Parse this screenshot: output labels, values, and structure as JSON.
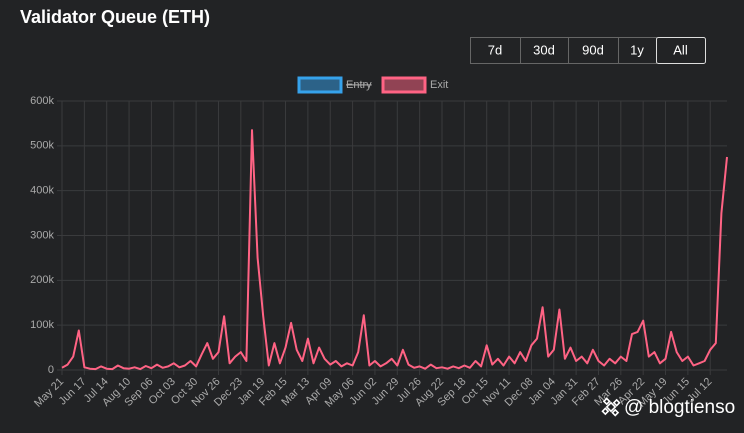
{
  "chart_data": {
    "type": "line",
    "title": "Validator Queue (ETH)",
    "buttons": [
      "7d",
      "30d",
      "90d",
      "1y",
      "All"
    ],
    "active_button": 4,
    "hidden_series": [
      {
        "name": "Entry",
        "color": "#36a2eb"
      }
    ],
    "series": [
      {
        "name": "Exit",
        "color": "#ff6384",
        "values": [
          5000,
          12000,
          30000,
          88000,
          6000,
          3000,
          2000,
          8000,
          3000,
          2000,
          10000,
          4000,
          3000,
          6000,
          2000,
          9000,
          4000,
          12000,
          5000,
          8000,
          15000,
          6000,
          10000,
          20000,
          8000,
          35000,
          60000,
          25000,
          40000,
          120000,
          15000,
          30000,
          40000,
          20000,
          535000,
          250000,
          120000,
          10000,
          60000,
          15000,
          50000,
          105000,
          45000,
          20000,
          70000,
          15000,
          50000,
          25000,
          12000,
          20000,
          8000,
          15000,
          10000,
          40000,
          122000,
          10000,
          20000,
          8000,
          15000,
          25000,
          10000,
          45000,
          12000,
          5000,
          8000,
          3000,
          12000,
          4000,
          6000,
          3000,
          8000,
          4000,
          10000,
          5000,
          20000,
          8000,
          55000,
          12000,
          25000,
          10000,
          30000,
          15000,
          40000,
          20000,
          55000,
          70000,
          140000,
          30000,
          45000,
          135000,
          25000,
          50000,
          20000,
          30000,
          15000,
          45000,
          20000,
          10000,
          25000,
          15000,
          30000,
          20000,
          80000,
          85000,
          110000,
          30000,
          40000,
          15000,
          25000,
          85000,
          40000,
          20000,
          30000,
          10000,
          15000,
          20000,
          45000,
          60000,
          350000,
          475000
        ]
      }
    ],
    "categories": [
      "May 21",
      null,
      null,
      null,
      "Jun 17",
      null,
      null,
      null,
      "Jul 14",
      null,
      null,
      null,
      "Aug 10",
      null,
      null,
      null,
      "Sep 06",
      null,
      null,
      null,
      "Oct 03",
      null,
      null,
      null,
      "Oct 30",
      null,
      null,
      null,
      "Nov 26",
      null,
      null,
      null,
      "Dec 23",
      null,
      null,
      null,
      "Jan 19",
      null,
      null,
      null,
      "Feb 15",
      null,
      null,
      null,
      "Mar 13",
      null,
      null,
      null,
      "Apr 09",
      null,
      null,
      null,
      "May 06",
      null,
      null,
      null,
      "Jun 02",
      null,
      null,
      null,
      "Jun 29",
      null,
      null,
      null,
      "Jul 26",
      null,
      null,
      null,
      "Aug 22",
      null,
      null,
      null,
      "Sep 18",
      null,
      null,
      null,
      "Oct 15",
      null,
      null,
      null,
      "Nov 11",
      null,
      null,
      null,
      "Dec 08",
      null,
      null,
      null,
      "Jan 04",
      null,
      null,
      null,
      "Jan 31",
      null,
      null,
      null,
      "Feb 27",
      null,
      null,
      null,
      "Mar 26",
      null,
      null,
      null,
      "Apr 22",
      null,
      null,
      null,
      "May 19",
      null,
      null,
      null,
      "Jun 15",
      null,
      null,
      null,
      "Jul 12",
      null,
      null,
      null
    ],
    "ylim": [
      0,
      600000
    ],
    "yticks": [
      0,
      {
        "value": 100000,
        "label": "100k"
      },
      {
        "value": 200000,
        "label": "200k"
      },
      {
        "value": 300000,
        "label": "300k"
      },
      {
        "value": 400000,
        "label": "400k"
      },
      {
        "value": 500000,
        "label": "500k"
      },
      {
        "value": 600000,
        "label": "600k"
      }
    ],
    "grid": true,
    "watermark": "@ blogtienso"
  }
}
